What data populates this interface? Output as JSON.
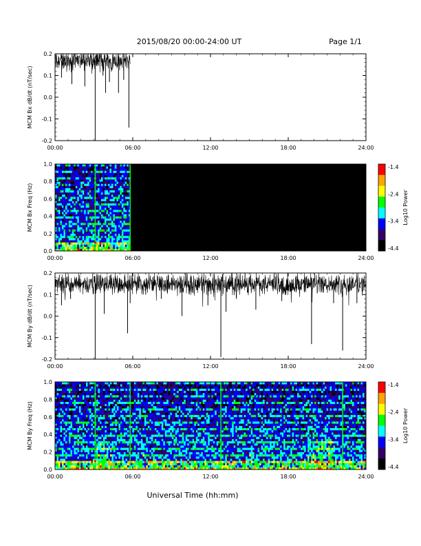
{
  "header": {
    "title": "2015/08/20  00:00-24:00 UT",
    "page": "Page 1/1"
  },
  "footer": {
    "xlabel": "Universal Time (hh:mm)"
  },
  "colorbar": {
    "label": "Log10 Power",
    "ticks": [
      "-1.4",
      "-2.4",
      "-3.4",
      "-4.4"
    ],
    "colors": [
      "#ff0000",
      "#ffa500",
      "#ffff00",
      "#00ff00",
      "#00ffff",
      "#0000ff",
      "#330066",
      "#000000"
    ]
  },
  "x_ticks": [
    "00:00",
    "06:00",
    "12:00",
    "18:00",
    "24:00"
  ],
  "chart_data": [
    {
      "type": "line",
      "panel": "Bx dB/dt",
      "ylabel": "MCM Bx dB/dt (nT/sec)",
      "xlim": [
        0,
        24
      ],
      "ylim": [
        -0.2,
        0.2
      ],
      "y_ticks": [
        "0.2",
        "0.1",
        "0.0",
        "-0.1",
        "-0.2"
      ],
      "data_end_hour": 5.8,
      "baseline": 0.17,
      "spikes": [
        [
          0.5,
          0.09
        ],
        [
          1.3,
          0.06
        ],
        [
          2.3,
          0.05
        ],
        [
          3.1,
          -0.2
        ],
        [
          3.7,
          0.1
        ],
        [
          3.9,
          0.02
        ],
        [
          4.2,
          0.07
        ],
        [
          4.9,
          0.02
        ],
        [
          5.3,
          0.08
        ],
        [
          5.7,
          -0.14
        ]
      ],
      "line_color": "#000000"
    },
    {
      "type": "heatmap",
      "panel": "Bx spectrogram",
      "ylabel": "MCM Bx Freq (Hz)",
      "xlim": [
        0,
        24
      ],
      "ylim": [
        0,
        1.0
      ],
      "y_ticks": [
        "1.0",
        "0.8",
        "0.6",
        "0.4",
        "0.2",
        "0.0"
      ],
      "data_end_hour": 5.8,
      "vertical_lines_hours": [
        3.1,
        5.8
      ],
      "background_color": "#000000"
    },
    {
      "type": "line",
      "panel": "By dB/dt",
      "ylabel": "MCM By dB/dt (nT/sec)",
      "xlim": [
        0,
        24
      ],
      "ylim": [
        -0.2,
        0.2
      ],
      "y_ticks": [
        "0.2",
        "0.1",
        "0.0",
        "-0.1",
        "-0.2"
      ],
      "data_end_hour": 24,
      "baseline": 0.15,
      "spikes": [
        [
          0.5,
          0.05
        ],
        [
          1.2,
          0.08
        ],
        [
          3.1,
          -0.2
        ],
        [
          3.8,
          0.01
        ],
        [
          5.6,
          -0.08
        ],
        [
          5.8,
          0.06
        ],
        [
          7.0,
          0.1
        ],
        [
          8.2,
          0.08
        ],
        [
          9.8,
          0.0
        ],
        [
          11.8,
          0.05
        ],
        [
          12.8,
          -0.19
        ],
        [
          13.2,
          0.02
        ],
        [
          14.0,
          0.08
        ],
        [
          15.5,
          0.03
        ],
        [
          17.5,
          0.07
        ],
        [
          19.8,
          -0.13
        ],
        [
          21.5,
          0.06
        ],
        [
          22.2,
          -0.16
        ],
        [
          23.3,
          0.06
        ]
      ],
      "line_color": "#000000"
    },
    {
      "type": "heatmap",
      "panel": "By spectrogram",
      "ylabel": "MCM By Freq (Hz)",
      "xlim": [
        0,
        24
      ],
      "ylim": [
        0,
        1.0
      ],
      "y_ticks": [
        "1.0",
        "0.8",
        "0.6",
        "0.4",
        "0.2",
        "0.0"
      ],
      "data_end_hour": 24,
      "vertical_lines_hours": [
        3.1,
        5.8,
        12.8,
        22.2
      ],
      "background_color": "#000000"
    }
  ]
}
